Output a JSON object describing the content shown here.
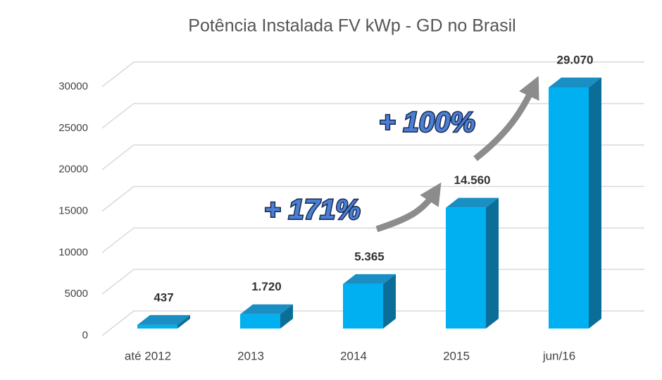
{
  "chart_data": {
    "type": "bar3d",
    "title": "Potência Instalada FV kWp - GD no Brasil",
    "categories": [
      "até 2012",
      "2013",
      "2014",
      "2015",
      "jun/16"
    ],
    "values": [
      437,
      1720,
      5365,
      14560,
      29070
    ],
    "value_labels": [
      "437",
      "1.720",
      "5.365",
      "14.560",
      "29.070"
    ],
    "color": "#00b0f0",
    "ylim": [
      0,
      30000
    ],
    "yticks": [
      0,
      5000,
      10000,
      15000,
      20000,
      25000,
      30000
    ],
    "grid": true,
    "annotations": [
      "+ 171%",
      "+ 100%"
    ]
  }
}
